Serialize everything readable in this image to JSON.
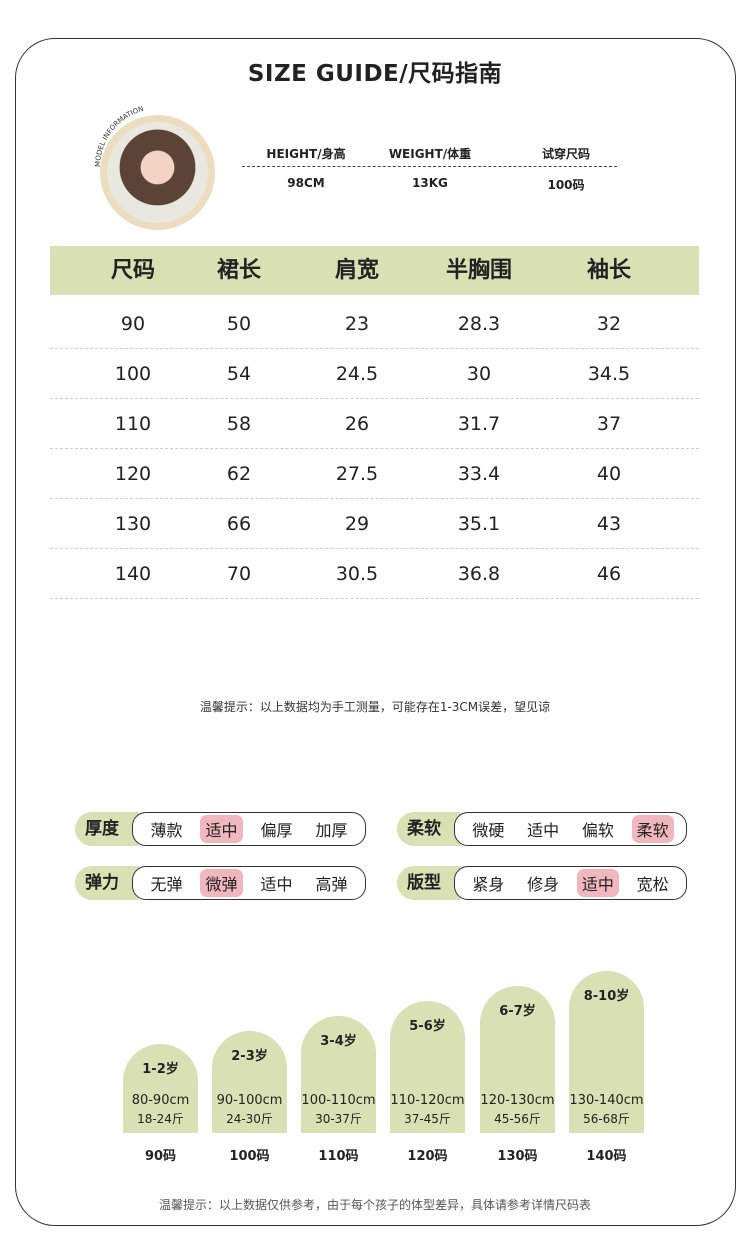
{
  "title": "SIZE GUIDE/尺码指南",
  "model": {
    "badge": "MODEL INFORMATION",
    "headers": [
      "HEIGHT/身高",
      "WEIGHT/体重",
      "试穿尺码"
    ],
    "values": [
      "98CM",
      "13KG",
      "100码"
    ]
  },
  "table": {
    "headers": [
      "尺码",
      "裙长",
      "肩宽",
      "半胸围",
      "袖长"
    ],
    "rows": [
      [
        "90",
        "50",
        "23",
        "28.3",
        "32"
      ],
      [
        "100",
        "54",
        "24.5",
        "30",
        "34.5"
      ],
      [
        "110",
        "58",
        "26",
        "31.7",
        "37"
      ],
      [
        "120",
        "62",
        "27.5",
        "33.4",
        "40"
      ],
      [
        "130",
        "66",
        "29",
        "35.1",
        "43"
      ],
      [
        "140",
        "70",
        "30.5",
        "36.8",
        "46"
      ]
    ]
  },
  "note1": "温馨提示：以上数据均为手工测量，可能存在1-3CM误差，望见谅",
  "attributes": [
    {
      "label": "厚度",
      "options": [
        "薄款",
        "适中",
        "偏厚",
        "加厚"
      ],
      "selected": 1
    },
    {
      "label": "柔软",
      "options": [
        "微硬",
        "适中",
        "偏软",
        "柔软"
      ],
      "selected": 3
    },
    {
      "label": "弹力",
      "options": [
        "无弹",
        "微弹",
        "适中",
        "高弹"
      ],
      "selected": 1
    },
    {
      "label": "版型",
      "options": [
        "紧身",
        "修身",
        "适中",
        "宽松"
      ],
      "selected": 2
    }
  ],
  "sizes": [
    {
      "age": "1-2岁",
      "height": "80-90cm",
      "weight": "18-24斤",
      "size": "90码"
    },
    {
      "age": "2-3岁",
      "height": "90-100cm",
      "weight": "24-30斤",
      "size": "100码"
    },
    {
      "age": "3-4岁",
      "height": "100-110cm",
      "weight": "30-37斤",
      "size": "110码"
    },
    {
      "age": "5-6岁",
      "height": "110-120cm",
      "weight": "37-45斤",
      "size": "120码"
    },
    {
      "age": "6-7岁",
      "height": "120-130cm",
      "weight": "45-56斤",
      "size": "130码"
    },
    {
      "age": "8-10岁",
      "height": "130-140cm",
      "weight": "56-68斤",
      "size": "140码"
    }
  ],
  "note2": "温馨提示：以上数据仅供参考，由于每个孩子的体型差异，具体请参考详情尺码表",
  "colors": {
    "green": "#d9e0b4",
    "pink": "#f0b8be"
  }
}
